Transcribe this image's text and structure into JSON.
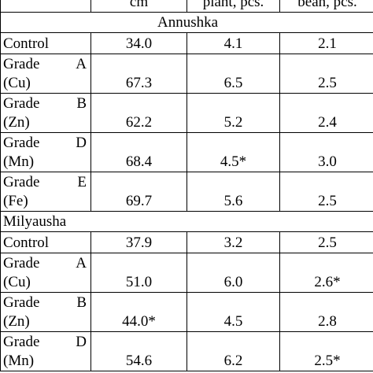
{
  "table": {
    "header": [
      "cm",
      "plant, pcs.",
      "bean, pcs."
    ],
    "groups": [
      {
        "name": "Annushka",
        "align": "center",
        "rows": [
          {
            "name": "Control",
            "sub": null,
            "values": [
              "34.0",
              "4.1",
              "2.1"
            ]
          },
          {
            "name": "Grade A",
            "sub": "(Cu)",
            "values": [
              "67.3",
              "6.5",
              "2.5"
            ]
          },
          {
            "name": "Grade B",
            "sub": "(Zn)",
            "values": [
              "62.2",
              "5.2",
              "2.4"
            ]
          },
          {
            "name": "Grade D",
            "sub": "(Mn)",
            "values": [
              "68.4",
              "4.5*",
              "3.0"
            ]
          },
          {
            "name": "Grade E",
            "sub": "(Fe)",
            "values": [
              "69.7",
              "5.6",
              "2.5"
            ]
          }
        ]
      },
      {
        "name": "Milyausha",
        "align": "left",
        "rows": [
          {
            "name": "Control",
            "sub": null,
            "values": [
              "37.9",
              "3.2",
              "2.5"
            ]
          },
          {
            "name": "Grade A",
            "sub": "(Cu)",
            "values": [
              "51.0",
              "6.0",
              "2.6*"
            ]
          },
          {
            "name": "Grade B",
            "sub": "(Zn)",
            "values": [
              "44.0*",
              "4.5",
              "2.8"
            ]
          },
          {
            "name": "Grade D",
            "sub": "(Mn)",
            "values": [
              "54.6",
              "6.2",
              "2.5*"
            ]
          }
        ]
      }
    ]
  }
}
